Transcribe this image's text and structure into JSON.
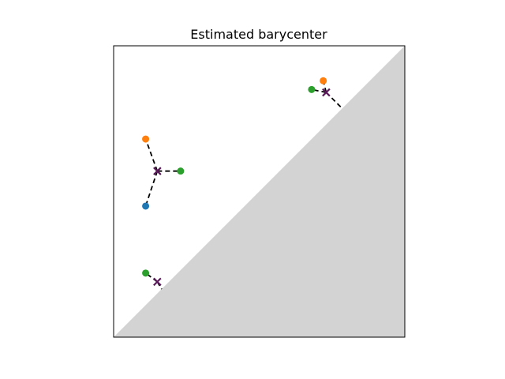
{
  "chart_data": {
    "type": "scatter",
    "title": "Estimated barycenter",
    "xlabel": "",
    "ylabel": "",
    "xlim": [
      0,
      10
    ],
    "ylim": [
      0,
      10
    ],
    "grid": false,
    "ticks": false,
    "diagonal_region": {
      "color": "#d3d3d3"
    },
    "series": [
      {
        "color": "#1f77b4",
        "points": [
          [
            1.1,
            4.5
          ]
        ]
      },
      {
        "color": "#ff7f0e",
        "points": [
          [
            1.1,
            6.8
          ],
          [
            7.2,
            8.8
          ]
        ]
      },
      {
        "color": "#2ca02c",
        "points": [
          [
            2.3,
            5.7
          ],
          [
            1.1,
            2.2
          ],
          [
            6.8,
            8.5
          ]
        ]
      }
    ],
    "barycenter": {
      "color": "#5a1a5a",
      "marker": "x",
      "points": [
        [
          1.5,
          5.7
        ],
        [
          1.5,
          1.9
        ],
        [
          7.3,
          8.4
        ]
      ]
    },
    "matchings": [
      [
        [
          1.5,
          5.7
        ],
        [
          1.1,
          6.8
        ]
      ],
      [
        [
          1.5,
          5.7
        ],
        [
          2.3,
          5.7
        ]
      ],
      [
        [
          1.5,
          5.7
        ],
        [
          1.1,
          4.5
        ]
      ],
      [
        [
          1.5,
          1.9
        ],
        [
          1.1,
          2.2
        ]
      ],
      [
        [
          1.5,
          1.9
        ],
        [
          1.65,
          1.65
        ]
      ],
      [
        [
          7.3,
          8.4
        ],
        [
          7.2,
          8.8
        ]
      ],
      [
        [
          7.3,
          8.4
        ],
        [
          6.8,
          8.5
        ]
      ],
      [
        [
          7.3,
          8.4
        ],
        [
          7.85,
          7.85
        ]
      ]
    ]
  }
}
